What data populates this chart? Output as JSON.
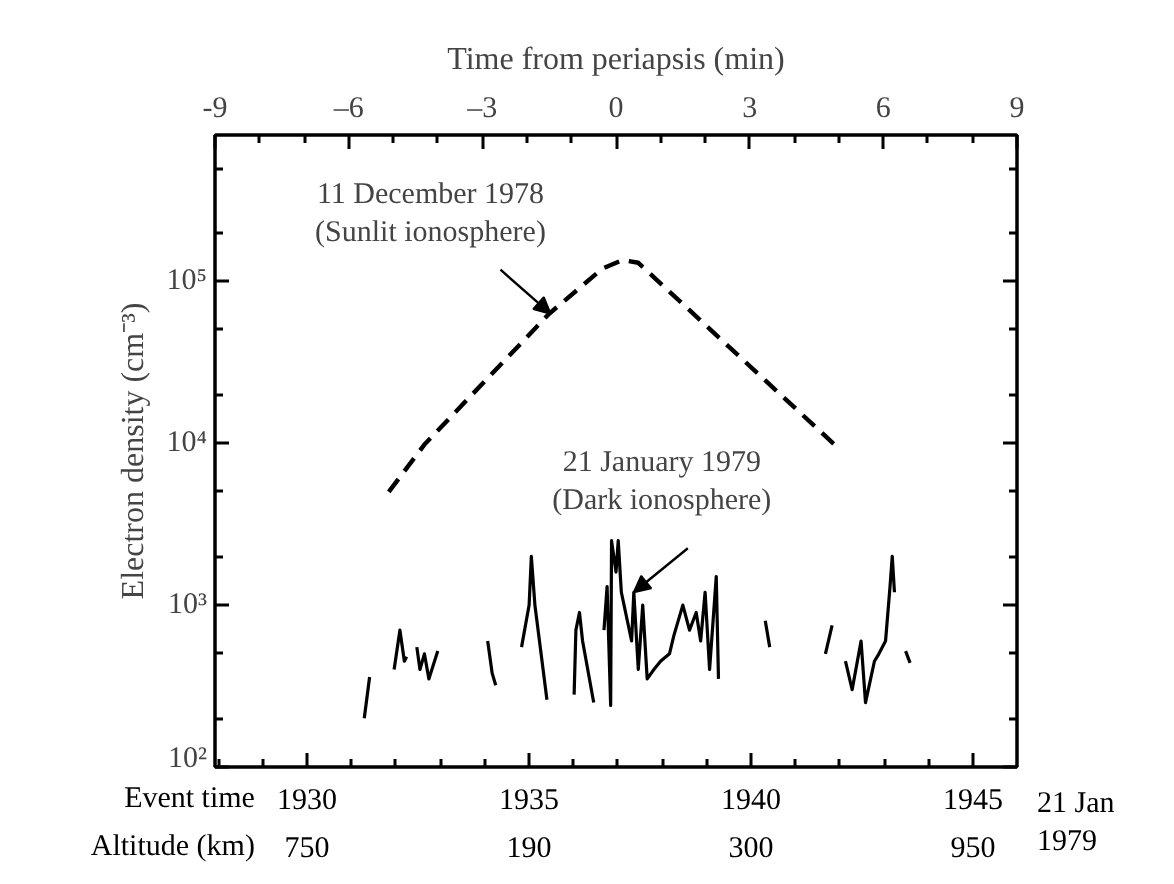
{
  "chart_data": {
    "type": "line",
    "xlabel": "Time from periapsis (min)",
    "ylabel": "Electron density (cm⁻³)",
    "x2label": "Event time",
    "xlim": [
      -9,
      9
    ],
    "xticks": [
      -9,
      {
        "value": -8,
        "label": null
      },
      {
        "value": -7,
        "label": null
      },
      {
        "value": -6,
        "label": "–6"
      },
      {
        "value": -5,
        "label": null
      },
      {
        "value": -4,
        "label": null
      },
      {
        "value": -3,
        "label": "–3"
      },
      {
        "value": -2,
        "label": null
      },
      {
        "value": -1,
        "label": null
      },
      0,
      {
        "value": 1,
        "label": null
      },
      {
        "value": 2,
        "label": null
      },
      3,
      {
        "value": 4,
        "label": null
      },
      {
        "value": 5,
        "label": null
      },
      6,
      {
        "value": 7,
        "label": null
      },
      {
        "value": 8,
        "label": null
      },
      9
    ],
    "x2lim": [
      1927.93,
      1945.99
    ],
    "x2ticks": [
      {
        "value": 1928,
        "label": null
      },
      {
        "value": 1929,
        "label": null
      },
      1930,
      {
        "value": 1931,
        "label": null
      },
      {
        "value": 1932,
        "label": null
      },
      {
        "value": 1933,
        "label": null
      },
      {
        "value": 1934,
        "label": null
      },
      1935,
      {
        "value": 1936,
        "label": null
      },
      {
        "value": 1937,
        "label": null
      },
      {
        "value": 1938,
        "label": null
      },
      {
        "value": 1939,
        "label": null
      },
      1940,
      {
        "value": 1941,
        "label": null
      },
      {
        "value": 1942,
        "label": null
      },
      {
        "value": 1943,
        "label": null
      },
      {
        "value": 1944,
        "label": null
      },
      1945
    ],
    "ylim": [
      100,
      800000
    ],
    "log": "y",
    "yticks": [
      {
        "value": 100,
        "label": "10²"
      },
      {
        "value": 200,
        "label": null
      },
      {
        "value": 500,
        "label": null
      },
      {
        "value": 1000,
        "label": "10³"
      },
      {
        "value": 2000,
        "label": null
      },
      {
        "value": 5000,
        "label": null
      },
      {
        "value": 10000,
        "label": "10⁴"
      },
      {
        "value": 20000,
        "label": null
      },
      {
        "value": 50000,
        "label": null
      },
      {
        "value": 100000,
        "label": "10⁵"
      },
      {
        "value": 200000,
        "label": null
      },
      {
        "value": 500000,
        "label": null
      }
    ],
    "grid": false,
    "marker": "none",
    "series": [
      {
        "color": "#000000",
        "line_style": "dashed",
        "x": [
          -5.1,
          -4.3,
          -1.5,
          -0.3,
          0.15,
          0.5,
          5.05
        ],
        "values": [
          5000,
          9800,
          63000,
          120000,
          135000,
          130000,
          9000
        ]
      },
      {
        "color": "#000000",
        "line_style": "solid",
        "x": [
          -5.65,
          -5.53,
          -5.3,
          -4.98,
          -4.85,
          -4.75,
          -4.7,
          -4.6,
          -4.47,
          -4.4,
          -4.3,
          -4.2,
          -4.0,
          -3.5,
          -2.88,
          -2.78,
          -2.7,
          -2.4,
          -2.12,
          -1.95,
          -1.9,
          -1.82,
          -1.55,
          -1.2,
          -0.94,
          -0.9,
          -0.82,
          -0.75,
          -0.5,
          -0.4,
          -0.27,
          -0.2,
          -0.12,
          -0.1,
          0.0,
          0.05,
          0.12,
          0.35,
          0.4,
          0.5,
          0.6,
          0.7,
          0.85,
          1.0,
          1.2,
          1.3,
          1.5,
          1.65,
          1.8,
          1.9,
          2.0,
          2.1,
          2.25,
          2.3,
          2.8,
          3.35,
          3.45,
          4.0,
          4.7,
          4.85,
          5.0,
          5.15,
          5.3,
          5.5,
          5.6,
          5.8,
          5.9,
          6.05,
          6.15,
          6.2,
          6.25,
          6.4,
          6.5,
          6.6
        ],
        "values": [
          200,
          360,
          null,
          400,
          700,
          450,
          480,
          null,
          550,
          400,
          500,
          350,
          520,
          null,
          600,
          380,
          320,
          null,
          550,
          1000,
          2000,
          1000,
          260,
          null,
          280,
          700,
          900,
          600,
          250,
          null,
          700,
          1300,
          240,
          2500,
          1600,
          2500,
          1200,
          600,
          1200,
          400,
          1000,
          350,
          400,
          450,
          500,
          650,
          1000,
          700,
          900,
          600,
          1200,
          400,
          1500,
          350,
          null,
          800,
          550,
          null,
          500,
          750,
          null,
          450,
          300,
          600,
          250,
          450,
          500,
          600,
          1300,
          2000,
          1200,
          null,
          520,
          440
        ]
      }
    ],
    "annotations": [
      {
        "text": "11 December 1978\n(Sunlit ionosphere)",
        "x": -1.47,
        "y": 63000
      },
      {
        "text": "21 January 1979\n(Dark ionosphere)",
        "x": 0.4,
        "y": 1200
      },
      "21 Jan\n1979",
      "Altitude (km)",
      "750",
      "190",
      "300",
      "950"
    ]
  }
}
